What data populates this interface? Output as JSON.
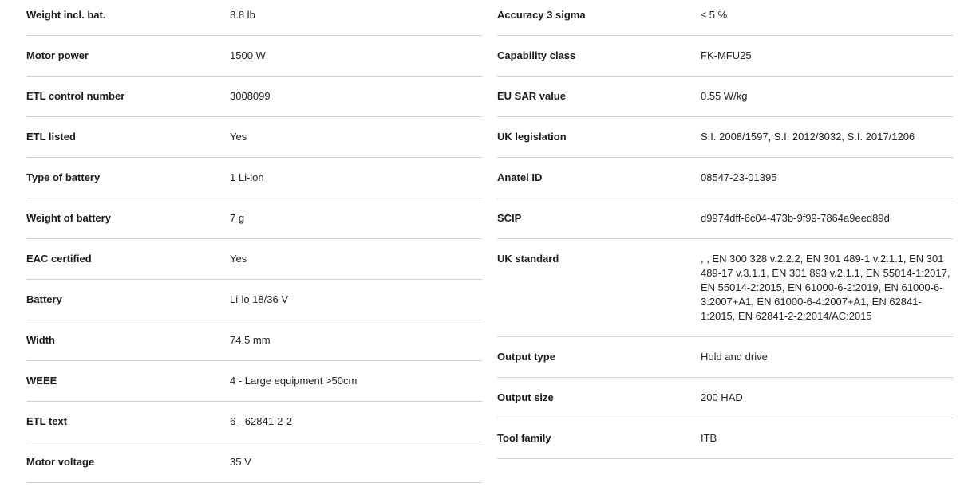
{
  "left": [
    {
      "label": "Weight incl. bat.",
      "value": "8.8 lb"
    },
    {
      "label": "Motor power",
      "value": "1500 W"
    },
    {
      "label": "ETL control number",
      "value": "3008099"
    },
    {
      "label": "ETL listed",
      "value": "Yes"
    },
    {
      "label": "Type of battery",
      "value": "1 Li-ion"
    },
    {
      "label": "Weight of battery",
      "value": "7 g"
    },
    {
      "label": "EAC certified",
      "value": "Yes"
    },
    {
      "label": "Battery",
      "value": "Li-lo 18/36 V"
    },
    {
      "label": "Width",
      "value": "74.5 mm"
    },
    {
      "label": "WEEE",
      "value": "4 - Large equipment >50cm"
    },
    {
      "label": "ETL text",
      "value": "6 - 62841-2-2"
    },
    {
      "label": "Motor voltage",
      "value": "35 V"
    }
  ],
  "right": [
    {
      "label": "Accuracy 3 sigma",
      "value": "≤ 5 %"
    },
    {
      "label": "Capability class",
      "value": "FK-MFU25"
    },
    {
      "label": "EU SAR value",
      "value": "0.55 W/kg"
    },
    {
      "label": "UK legislation",
      "value": "S.I. 2008/1597, S.I. 2012/3032, S.I. 2017/1206"
    },
    {
      "label": "Anatel ID",
      "value": "08547-23-01395"
    },
    {
      "label": "SCIP",
      "value": "d9974dff-6c04-473b-9f99-7864a9eed89d"
    },
    {
      "label": "UK standard",
      "value": ", , EN 300 328 v.2.2.2, EN 301 489-1 v.2.1.1, EN 301 489-17 v.3.1.1, EN 301 893 v.2.1.1, EN 55014-1:2017, EN 55014-2:2015, EN 61000-6-2:2019, EN 61000-6-3:2007+A1, EN 61000-6-4:2007+A1, EN 62841-1:2015, EN 62841-2-2:2014/AC:2015"
    },
    {
      "label": "Output type",
      "value": "Hold and drive"
    },
    {
      "label": "Output size",
      "value": "200 HAD"
    },
    {
      "label": "Tool family",
      "value": "ITB"
    }
  ]
}
